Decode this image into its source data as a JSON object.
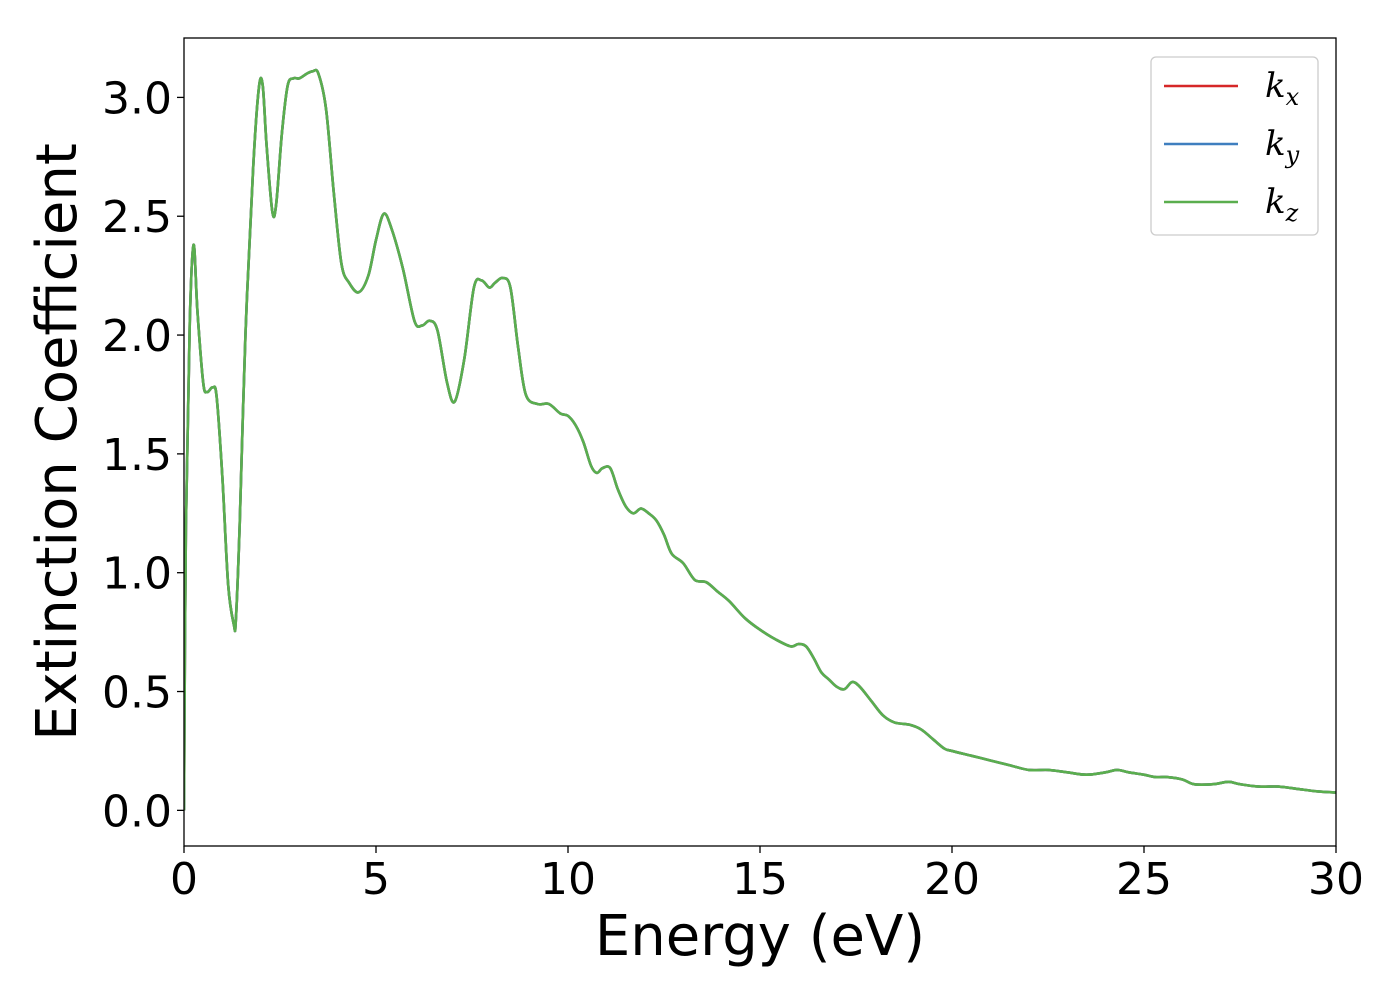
{
  "chart_data": {
    "type": "line",
    "xlabel": "Energy (eV)",
    "ylabel": "Extinction Coefficient",
    "xlim": [
      0,
      30
    ],
    "ylim": [
      -0.15,
      3.25
    ],
    "xticks": [
      0,
      5,
      10,
      15,
      20,
      25,
      30
    ],
    "xtick_labels": [
      "0",
      "5",
      "10",
      "15",
      "20",
      "25",
      "30"
    ],
    "yticks": [
      0.0,
      0.5,
      1.0,
      1.5,
      2.0,
      2.5,
      3.0
    ],
    "ytick_labels": [
      "0.0",
      "0.5",
      "1.0",
      "1.5",
      "2.0",
      "2.5",
      "3.0"
    ],
    "grid": false,
    "legend_position": "top-right",
    "x": [
      0,
      0.05,
      0.15,
      0.25,
      0.35,
      0.5,
      0.6,
      0.75,
      0.85,
      1.0,
      1.15,
      1.3,
      1.35,
      1.45,
      1.6,
      1.8,
      1.95,
      2.05,
      2.15,
      2.3,
      2.4,
      2.55,
      2.7,
      2.85,
      3.0,
      3.2,
      3.35,
      3.5,
      3.7,
      3.9,
      4.1,
      4.3,
      4.55,
      4.8,
      5.0,
      5.2,
      5.4,
      5.7,
      6.0,
      6.2,
      6.4,
      6.6,
      6.85,
      7.05,
      7.3,
      7.55,
      7.75,
      7.95,
      8.1,
      8.3,
      8.5,
      8.7,
      8.9,
      9.2,
      9.5,
      9.8,
      10.0,
      10.2,
      10.4,
      10.6,
      10.75,
      10.9,
      11.1,
      11.3,
      11.5,
      11.7,
      11.9,
      12.1,
      12.3,
      12.5,
      12.7,
      13.0,
      13.3,
      13.6,
      13.9,
      14.2,
      14.6,
      15.0,
      15.4,
      15.8,
      16.0,
      16.2,
      16.4,
      16.6,
      16.8,
      17.0,
      17.2,
      17.4,
      17.6,
      17.9,
      18.2,
      18.5,
      18.9,
      19.2,
      19.5,
      19.8,
      20.0,
      20.5,
      21.0,
      21.5,
      22.0,
      22.5,
      23.0,
      23.5,
      24.0,
      24.3,
      24.6,
      25.0,
      25.3,
      25.6,
      26.0,
      26.3,
      26.8,
      27.2,
      27.5,
      28.0,
      28.5,
      29.0,
      29.5,
      30.0
    ],
    "series": [
      {
        "name": "kx",
        "color": "#d62728",
        "values": [
          0.0,
          1.2,
          2.05,
          2.38,
          2.1,
          1.8,
          1.76,
          1.78,
          1.74,
          1.4,
          0.95,
          0.78,
          0.8,
          1.2,
          2.0,
          2.7,
          3.04,
          3.05,
          2.8,
          2.52,
          2.55,
          2.85,
          3.05,
          3.08,
          3.08,
          3.1,
          3.11,
          3.1,
          2.95,
          2.6,
          2.3,
          2.22,
          2.18,
          2.25,
          2.4,
          2.51,
          2.45,
          2.28,
          2.06,
          2.04,
          2.06,
          2.02,
          1.8,
          1.72,
          1.9,
          2.2,
          2.23,
          2.2,
          2.22,
          2.24,
          2.2,
          1.95,
          1.75,
          1.71,
          1.71,
          1.67,
          1.66,
          1.62,
          1.55,
          1.45,
          1.42,
          1.44,
          1.44,
          1.35,
          1.28,
          1.25,
          1.27,
          1.25,
          1.22,
          1.16,
          1.08,
          1.04,
          0.97,
          0.96,
          0.92,
          0.88,
          0.81,
          0.76,
          0.72,
          0.69,
          0.7,
          0.69,
          0.64,
          0.58,
          0.55,
          0.52,
          0.51,
          0.54,
          0.52,
          0.46,
          0.4,
          0.37,
          0.36,
          0.34,
          0.3,
          0.26,
          0.25,
          0.23,
          0.21,
          0.19,
          0.17,
          0.17,
          0.16,
          0.15,
          0.16,
          0.17,
          0.16,
          0.15,
          0.14,
          0.14,
          0.13,
          0.11,
          0.11,
          0.12,
          0.11,
          0.1,
          0.1,
          0.09,
          0.08,
          0.075
        ]
      },
      {
        "name": "ky",
        "color": "#3f7fbf",
        "values": [
          0.0,
          1.2,
          2.05,
          2.38,
          2.1,
          1.8,
          1.76,
          1.78,
          1.74,
          1.4,
          0.95,
          0.78,
          0.8,
          1.2,
          2.0,
          2.7,
          3.04,
          3.05,
          2.8,
          2.52,
          2.55,
          2.85,
          3.05,
          3.08,
          3.08,
          3.1,
          3.11,
          3.1,
          2.95,
          2.6,
          2.3,
          2.22,
          2.18,
          2.25,
          2.4,
          2.51,
          2.45,
          2.28,
          2.06,
          2.04,
          2.06,
          2.02,
          1.8,
          1.72,
          1.9,
          2.2,
          2.23,
          2.2,
          2.22,
          2.24,
          2.2,
          1.95,
          1.75,
          1.71,
          1.71,
          1.67,
          1.66,
          1.62,
          1.55,
          1.45,
          1.42,
          1.44,
          1.44,
          1.35,
          1.28,
          1.25,
          1.27,
          1.25,
          1.22,
          1.16,
          1.08,
          1.04,
          0.97,
          0.96,
          0.92,
          0.88,
          0.81,
          0.76,
          0.72,
          0.69,
          0.7,
          0.69,
          0.64,
          0.58,
          0.55,
          0.52,
          0.51,
          0.54,
          0.52,
          0.46,
          0.4,
          0.37,
          0.36,
          0.34,
          0.3,
          0.26,
          0.25,
          0.23,
          0.21,
          0.19,
          0.17,
          0.17,
          0.16,
          0.15,
          0.16,
          0.17,
          0.16,
          0.15,
          0.14,
          0.14,
          0.13,
          0.11,
          0.11,
          0.12,
          0.11,
          0.1,
          0.1,
          0.09,
          0.08,
          0.075
        ]
      },
      {
        "name": "kz",
        "color": "#5aae4e",
        "values": [
          0.0,
          1.2,
          2.05,
          2.38,
          2.1,
          1.8,
          1.76,
          1.78,
          1.74,
          1.4,
          0.95,
          0.78,
          0.8,
          1.2,
          2.0,
          2.7,
          3.04,
          3.05,
          2.8,
          2.52,
          2.55,
          2.85,
          3.05,
          3.08,
          3.08,
          3.1,
          3.11,
          3.1,
          2.95,
          2.6,
          2.3,
          2.22,
          2.18,
          2.25,
          2.4,
          2.51,
          2.45,
          2.28,
          2.06,
          2.04,
          2.06,
          2.02,
          1.8,
          1.72,
          1.9,
          2.2,
          2.23,
          2.2,
          2.22,
          2.24,
          2.2,
          1.95,
          1.75,
          1.71,
          1.71,
          1.67,
          1.66,
          1.62,
          1.55,
          1.45,
          1.42,
          1.44,
          1.44,
          1.35,
          1.28,
          1.25,
          1.27,
          1.25,
          1.22,
          1.16,
          1.08,
          1.04,
          0.97,
          0.96,
          0.92,
          0.88,
          0.81,
          0.76,
          0.72,
          0.69,
          0.7,
          0.69,
          0.64,
          0.58,
          0.55,
          0.52,
          0.51,
          0.54,
          0.52,
          0.46,
          0.4,
          0.37,
          0.36,
          0.34,
          0.3,
          0.26,
          0.25,
          0.23,
          0.21,
          0.19,
          0.17,
          0.17,
          0.16,
          0.15,
          0.16,
          0.17,
          0.16,
          0.15,
          0.14,
          0.14,
          0.13,
          0.11,
          0.11,
          0.12,
          0.11,
          0.1,
          0.1,
          0.09,
          0.08,
          0.075
        ]
      }
    ],
    "legend": [
      {
        "base": "k",
        "sub": "x",
        "color": "#d62728"
      },
      {
        "base": "k",
        "sub": "y",
        "color": "#3f7fbf"
      },
      {
        "base": "k",
        "sub": "z",
        "color": "#5aae4e"
      }
    ]
  }
}
